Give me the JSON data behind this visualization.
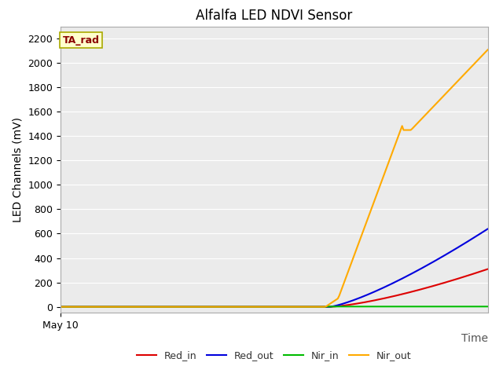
{
  "title": "Alfalfa LED NDVI Sensor",
  "xlabel": "Time",
  "ylabel": "LED Channels (mV)",
  "ylim": [
    -50,
    2300
  ],
  "xlim": [
    0,
    100
  ],
  "background_color": "#ebebeb",
  "figure_bg": "#ffffff",
  "annotation_text": "TA_rad",
  "annotation_color": "#8b0000",
  "annotation_bg": "#ffffcc",
  "annotation_edge": "#aaaa00",
  "series": {
    "Red_in": {
      "color": "#dd0000",
      "linewidth": 1.5
    },
    "Red_out": {
      "color": "#0000dd",
      "linewidth": 1.5
    },
    "Nir_in": {
      "color": "#00bb00",
      "linewidth": 1.5
    },
    "Nir_out": {
      "color": "#ffaa00",
      "linewidth": 1.5
    }
  },
  "x_start_label": "May 10",
  "yticks": [
    0,
    200,
    400,
    600,
    800,
    1000,
    1200,
    1400,
    1600,
    1800,
    2000,
    2200
  ],
  "grid_color": "#ffffff",
  "legend_fontsize": 9,
  "title_fontsize": 12,
  "axis_label_fontsize": 10,
  "tick_fontsize": 9
}
